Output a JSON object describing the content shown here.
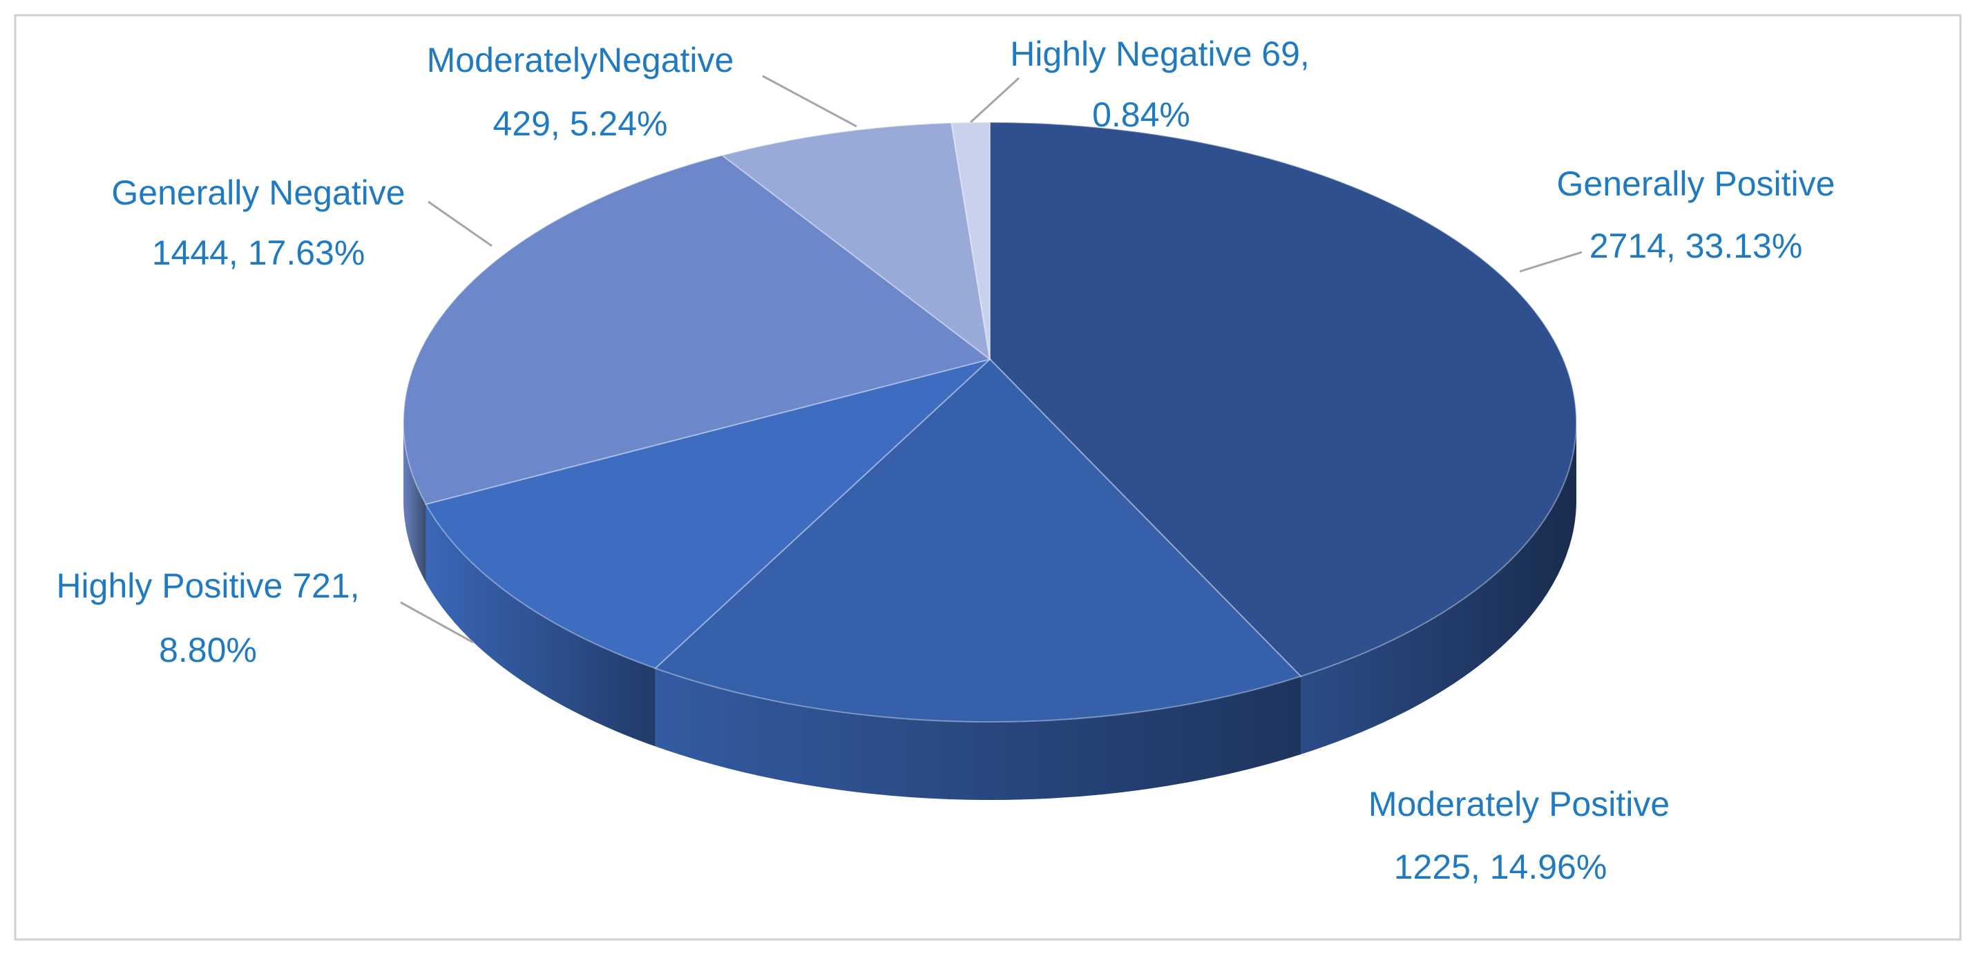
{
  "chart_data": {
    "type": "pie",
    "values": [
      2714,
      1225,
      721,
      1444,
      429,
      69
    ],
    "value_labels": [
      [
        "Generally Positive",
        "2714, 33.13%"
      ],
      [
        "Moderately Positive",
        "1225, 14.96%"
      ],
      [
        "Highly Positive 721,",
        "8.80%"
      ],
      [
        "Generally Negative",
        "1444, 17.63%"
      ],
      [
        "ModeratelyNegative",
        "429, 5.24%"
      ],
      [
        "Highly Negative 69,",
        "0.84%"
      ]
    ],
    "colors": [
      "#2e508f",
      "#3660aa",
      "#3d6cc0",
      "#6d88ca",
      "#9aaad8",
      "#c9d1ec"
    ]
  }
}
